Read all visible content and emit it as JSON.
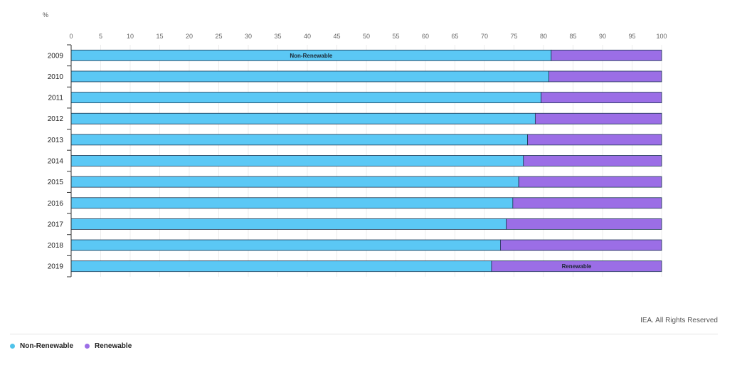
{
  "chart_data": {
    "type": "bar",
    "orientation": "horizontal",
    "stacked": true,
    "title": "",
    "unit_label": "%",
    "xlim": [
      0,
      100
    ],
    "x_ticks": [
      0,
      5,
      10,
      15,
      20,
      25,
      30,
      35,
      40,
      45,
      50,
      55,
      60,
      65,
      70,
      75,
      80,
      85,
      90,
      95,
      100
    ],
    "categories": [
      "2009",
      "2010",
      "2011",
      "2012",
      "2013",
      "2014",
      "2015",
      "2016",
      "2017",
      "2018",
      "2019"
    ],
    "series": [
      {
        "name": "Non-Renewable",
        "color": "#5bc8f5",
        "values": [
          81.3,
          80.9,
          79.6,
          78.6,
          77.3,
          76.6,
          75.8,
          74.8,
          73.7,
          72.7,
          71.2
        ]
      },
      {
        "name": "Renewable",
        "color": "#9b6ee6",
        "values": [
          18.7,
          19.1,
          20.4,
          21.4,
          22.7,
          23.4,
          24.2,
          25.2,
          26.3,
          27.3,
          28.8
        ]
      }
    ],
    "inline_labels": [
      {
        "series": "Non-Renewable",
        "category": "2009",
        "text": "Non-Renewable"
      },
      {
        "series": "Renewable",
        "category": "2019",
        "text": "Renewable"
      }
    ],
    "legend_position": "bottom-left",
    "grid": true
  },
  "footer": {
    "credit": "IEA. All Rights Reserved"
  }
}
